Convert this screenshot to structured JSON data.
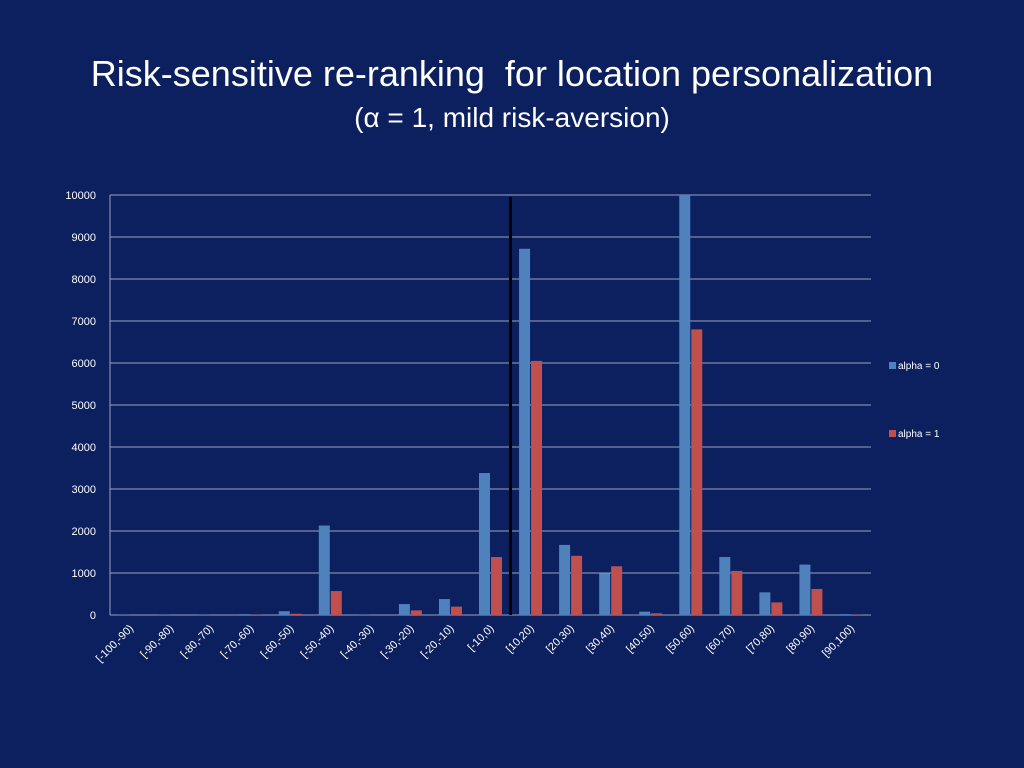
{
  "slide": {
    "title": "Risk-sensitive re-ranking  for location personalization",
    "subtitle": "(α = 1, mild risk-aversion)"
  },
  "colors": {
    "background": "#0c1f5e",
    "series_alpha0": "#4f81bd",
    "series_alpha1": "#c0504d",
    "gridline": "#9aa3c4",
    "divider": "#000000"
  },
  "chart_data": {
    "type": "bar",
    "title": "",
    "xlabel": "",
    "ylabel": "",
    "ylim": [
      0,
      10000
    ],
    "yticks": [
      0,
      1000,
      2000,
      3000,
      4000,
      5000,
      6000,
      7000,
      8000,
      9000,
      10000
    ],
    "grid": true,
    "legend": "right",
    "categories": [
      "[-100,-90)",
      "[-90,-80)",
      "[-80,-70)",
      "[-70,-60)",
      "[-60,-50)",
      "[-50,-40)",
      "[-40,-30)",
      "[-30,-20)",
      "[-20,-10)",
      "[-10,0)",
      "[10,20)",
      "[20,30)",
      "[30,40)",
      "[40,50)",
      "[50,60)",
      "[60,70)",
      "[70,80)",
      "[80,90)",
      "[90,100)"
    ],
    "series": [
      {
        "name": "alpha = 0",
        "color": "#4f81bd",
        "values": [
          5,
          5,
          5,
          20,
          90,
          2130,
          5,
          260,
          380,
          3380,
          8720,
          1670,
          990,
          80,
          10000,
          1380,
          540,
          1200,
          20
        ]
      },
      {
        "name": "alpha = 1",
        "color": "#c0504d",
        "values": [
          0,
          0,
          0,
          5,
          30,
          570,
          0,
          110,
          200,
          1380,
          6050,
          1410,
          1160,
          40,
          6800,
          1050,
          300,
          620,
          5
        ]
      }
    ],
    "reference_line_between": [
      "[-10,0)",
      "[10,20)"
    ]
  }
}
